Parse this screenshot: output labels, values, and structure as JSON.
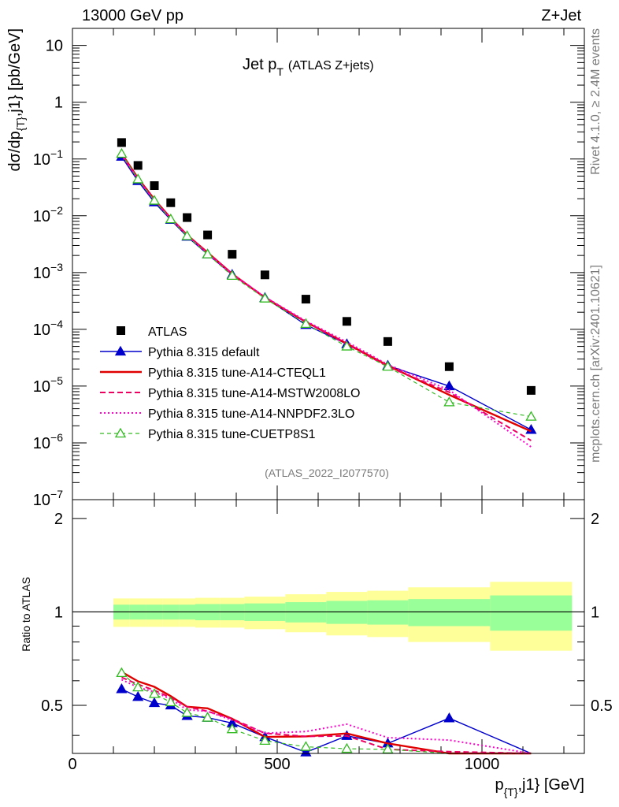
{
  "header": {
    "left": "13000 GeV pp",
    "right": "Z+Jet"
  },
  "side": {
    "rivet": "Rivet 4.1.0, ≥ 2.4M events",
    "mcplots": "mcplots.cern.ch [arXiv:2401.10621]"
  },
  "plot_title": {
    "main": "Jet p",
    "sub": "T",
    "tag": "(ATLAS Z+jets)"
  },
  "analysis_id": "(ATLAS_2022_I2077570)",
  "axes": {
    "ylabel_main": "dσ/dp",
    "ylabel_sub": "{T}",
    "ylabel_tail": ",j1} [pb/GeV]",
    "ratio_ylabel": "Ratio to ATLAS",
    "xlabel_main": "p",
    "xlabel_sub": "{T}",
    "xlabel_tail": ",j1} [GeV]"
  },
  "colors": {
    "atlas": "#000000",
    "default": "#0000cc",
    "cteql1": "#e00000",
    "mstw": "#ee0060",
    "nnpdf": "#ff00cc",
    "cuetp8s1": "#33bb22",
    "band_inner": "#99ff99",
    "band_outer": "#ffff99"
  },
  "chart_data": {
    "type": "line",
    "title": "Jet pT (ATLAS Z+jets)",
    "xlabel": "p_{T},j1} [GeV]",
    "ylabel": "dσ/dp_{T},j1} [pb/GeV]",
    "xlim": [
      0,
      1250
    ],
    "ylim_main": [
      1e-07,
      20
    ],
    "yscale_main": "log",
    "ylim_ratio": [
      0.35,
      2.3
    ],
    "yscale_ratio": "log",
    "x_ticks": [
      0,
      500,
      1000
    ],
    "y_ticks_main": [
      "10",
      "1",
      "10^-1",
      "10^-2",
      "10^-3",
      "10^-4",
      "10^-5",
      "10^-6",
      "10^-7"
    ],
    "y_ticks_ratio": [
      "2",
      "1",
      "0.5"
    ],
    "bin_edges": [
      100,
      140,
      180,
      220,
      260,
      300,
      360,
      420,
      520,
      620,
      720,
      820,
      1020,
      1220
    ],
    "x": [
      120,
      160,
      200,
      240,
      280,
      330,
      390,
      470,
      570,
      670,
      770,
      920,
      1120
    ],
    "legend": {
      "placement": "lower-left",
      "entries": [
        "ATLAS",
        "Pythia 8.315 default",
        "Pythia 8.315 tune-A14-CTEQL1",
        "Pythia 8.315 tune-A14-MSTW2008LO",
        "Pythia 8.315 tune-A14-NNPDF2.3LO",
        "Pythia 8.315 tune-CUETP8S1"
      ]
    },
    "ratio_band_inner": [
      0.055,
      0.055,
      0.055,
      0.055,
      0.055,
      0.06,
      0.06,
      0.065,
      0.075,
      0.085,
      0.09,
      0.1,
      0.13
    ],
    "ratio_band_outer": [
      0.105,
      0.105,
      0.105,
      0.105,
      0.105,
      0.11,
      0.11,
      0.12,
      0.14,
      0.16,
      0.17,
      0.2,
      0.25
    ],
    "series": [
      {
        "name": "ATLAS",
        "key": "atlas",
        "style": "data",
        "values": [
          0.195,
          0.077,
          0.034,
          0.017,
          0.0093,
          0.0046,
          0.0021,
          0.00091,
          0.00034,
          0.000138,
          6.1e-05,
          2.2e-05,
          8.4e-06
        ]
      },
      {
        "name": "Pythia 8.315 default",
        "key": "default",
        "style": "solid-thin",
        "marker": "triangle-filled",
        "values": [
          0.11,
          0.041,
          0.0173,
          0.0085,
          0.0043,
          0.0021,
          0.00092,
          0.00036,
          0.00012,
          5.5e-05,
          2.3e-05,
          1e-05,
          1.7e-06
        ]
      },
      {
        "name": "Pythia 8.315 tune-A14-CTEQL1",
        "key": "cteql1",
        "style": "solid-thick",
        "values": [
          0.125,
          0.046,
          0.0195,
          0.0091,
          0.0046,
          0.00225,
          0.00095,
          0.00036,
          0.000135,
          5.6e-05,
          2.3e-05,
          7e-06,
          1.6e-06
        ]
      },
      {
        "name": "Pythia 8.315 tune-A14-MSTW2008LO",
        "key": "mstw",
        "style": "dashed",
        "values": [
          0.12,
          0.045,
          0.019,
          0.009,
          0.0046,
          0.0022,
          0.00095,
          0.00037,
          0.000135,
          5.5e-05,
          2.2e-05,
          7.8e-06,
          1.1e-06
        ]
      },
      {
        "name": "Pythia 8.315 tune-A14-NNPDF2.3LO",
        "key": "nnpdf",
        "style": "dotted",
        "values": [
          0.118,
          0.044,
          0.0188,
          0.0089,
          0.0045,
          0.0022,
          0.00094,
          0.00037,
          0.00014,
          6e-05,
          2.4e-05,
          8.5e-06,
          8.5e-07
        ]
      },
      {
        "name": "Pythia 8.315 tune-CUETP8S1",
        "key": "cuetp8s1",
        "style": "dashed-thin",
        "marker": "triangle-open",
        "values": [
          0.124,
          0.044,
          0.0185,
          0.0087,
          0.0044,
          0.0021,
          0.00088,
          0.00035,
          0.000125,
          5e-05,
          2.2e-05,
          5.2e-06,
          2.9e-06
        ]
      }
    ]
  }
}
